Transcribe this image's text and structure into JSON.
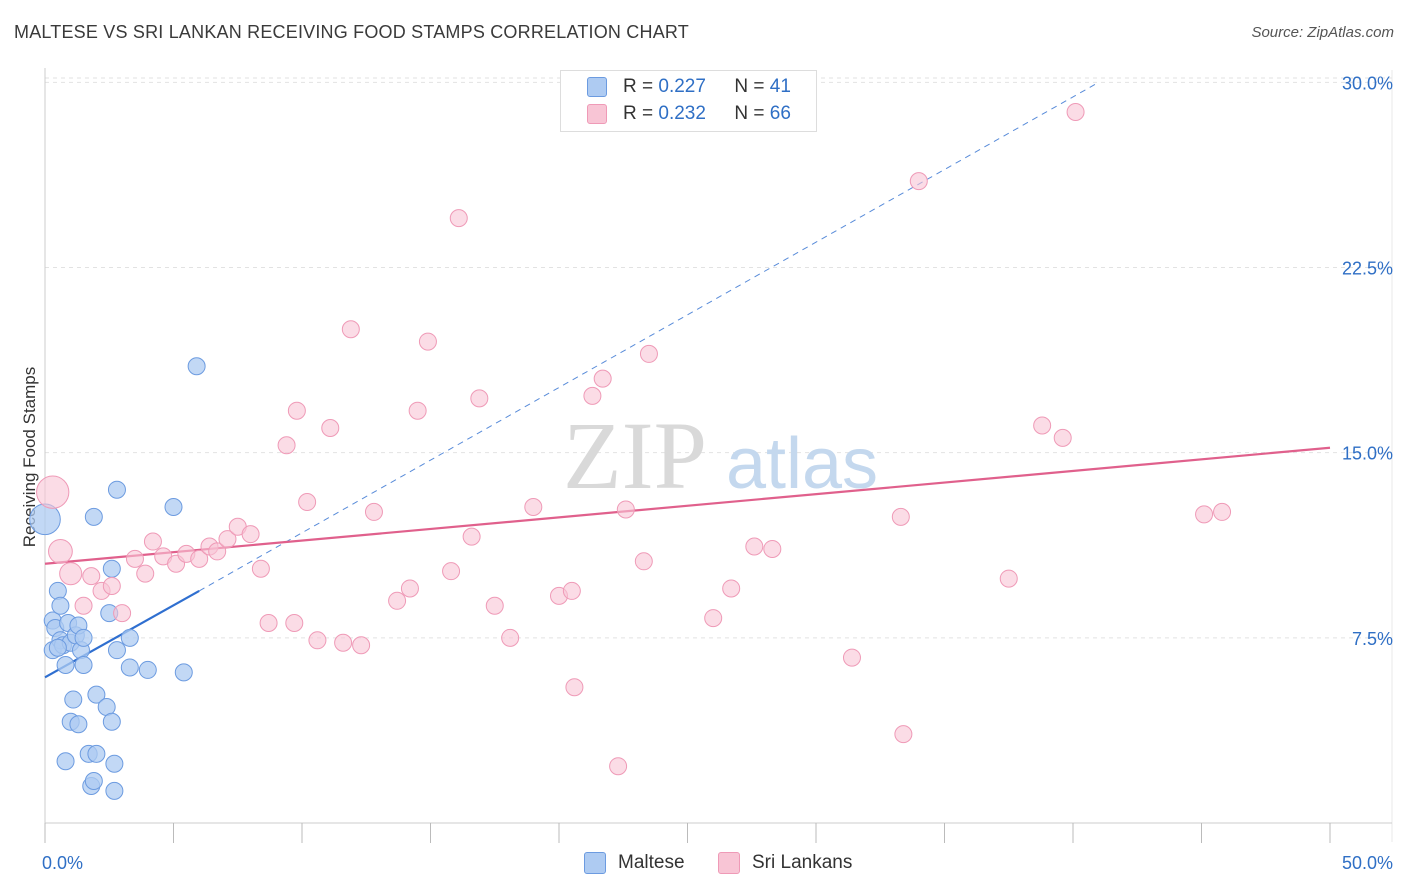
{
  "title": "MALTESE VS SRI LANKAN RECEIVING FOOD STAMPS CORRELATION CHART",
  "source": "Source: ZipAtlas.com",
  "colors": {
    "maltese_fill": "#aecbf2",
    "maltese_stroke": "#6c9be0",
    "maltese_line": "#2f6fd0",
    "srilankan_fill": "#f8c5d5",
    "srilankan_stroke": "#ef9ab7",
    "srilankan_line": "#e0608c",
    "value_text": "#2f6fc5"
  },
  "legend": {
    "r_label": "R =",
    "n_label": "N =",
    "maltese": {
      "r": "0.227",
      "n": "41"
    },
    "srilankan": {
      "r": "0.232",
      "n": "66"
    }
  },
  "chart_data": {
    "type": "scatter",
    "title": "MALTESE VS SRI LANKAN RECEIVING FOOD STAMPS CORRELATION CHART",
    "xlabel": "",
    "ylabel": "Receiving Food Stamps",
    "xlim": [
      0,
      50
    ],
    "ylim": [
      0,
      30.5
    ],
    "x_tick_labels": [
      "0.0%",
      "50.0%"
    ],
    "y_ticks": [
      7.5,
      15.0,
      22.5,
      30.0
    ],
    "y_tick_labels": [
      "7.5%",
      "15.0%",
      "22.5%",
      "30.0%"
    ],
    "grid": true,
    "watermark": {
      "zip": "ZIP",
      "atlas": "atlas"
    },
    "series": [
      {
        "name": "Maltese",
        "r": 0.227,
        "n": 41,
        "trend": {
          "x0": 0,
          "y0": 5.9,
          "x1": 6.0,
          "y1": 9.4,
          "dashed_to_x": 41.0,
          "dashed_to_y": 30.0
        },
        "points": [
          [
            0.0,
            12.3,
            1.8
          ],
          [
            0.3,
            8.2,
            1
          ],
          [
            0.3,
            7.0,
            1
          ],
          [
            0.4,
            7.9,
            1
          ],
          [
            0.5,
            9.4,
            1
          ],
          [
            0.6,
            7.4,
            1
          ],
          [
            0.6,
            8.8,
            1
          ],
          [
            0.7,
            7.2,
            1
          ],
          [
            0.8,
            6.4,
            1
          ],
          [
            0.9,
            8.1,
            1
          ],
          [
            1.0,
            7.3,
            1
          ],
          [
            1.1,
            5.0,
            1
          ],
          [
            1.2,
            7.6,
            1
          ],
          [
            1.3,
            8.0,
            1
          ],
          [
            1.4,
            7.0,
            1
          ],
          [
            1.5,
            7.5,
            1
          ],
          [
            1.0,
            4.1,
            1
          ],
          [
            1.3,
            4.0,
            1
          ],
          [
            0.8,
            2.5,
            1
          ],
          [
            1.7,
            2.8,
            1
          ],
          [
            2.0,
            2.8,
            1
          ],
          [
            1.8,
            1.5,
            1
          ],
          [
            1.9,
            1.7,
            1
          ],
          [
            2.7,
            1.3,
            1
          ],
          [
            2.7,
            2.4,
            1
          ],
          [
            2.0,
            5.2,
            1
          ],
          [
            2.4,
            4.7,
            1
          ],
          [
            2.6,
            4.1,
            1
          ],
          [
            2.5,
            8.5,
            1
          ],
          [
            2.6,
            10.3,
            1
          ],
          [
            1.9,
            12.4,
            1
          ],
          [
            2.8,
            13.5,
            1
          ],
          [
            2.8,
            7.0,
            1
          ],
          [
            3.3,
            7.5,
            1
          ],
          [
            3.3,
            6.3,
            1
          ],
          [
            4.0,
            6.2,
            1
          ],
          [
            5.0,
            12.8,
            1
          ],
          [
            5.4,
            6.1,
            1
          ],
          [
            5.9,
            18.5,
            1
          ],
          [
            0.5,
            7.1,
            1
          ],
          [
            1.5,
            6.4,
            1
          ]
        ]
      },
      {
        "name": "Sri Lankans",
        "r": 0.232,
        "n": 66,
        "trend": {
          "x0": 0,
          "y0": 10.5,
          "x1": 50,
          "y1": 15.2
        },
        "points": [
          [
            0.3,
            13.4,
            1.9
          ],
          [
            0.6,
            11.0,
            1.4
          ],
          [
            1.0,
            10.1,
            1.3
          ],
          [
            1.5,
            8.8,
            1
          ],
          [
            1.8,
            10.0,
            1
          ],
          [
            2.2,
            9.4,
            1
          ],
          [
            2.6,
            9.6,
            1
          ],
          [
            3.0,
            8.5,
            1
          ],
          [
            3.5,
            10.7,
            1
          ],
          [
            3.9,
            10.1,
            1
          ],
          [
            4.2,
            11.4,
            1
          ],
          [
            4.6,
            10.8,
            1
          ],
          [
            5.1,
            10.5,
            1
          ],
          [
            5.5,
            10.9,
            1
          ],
          [
            6.0,
            10.7,
            1
          ],
          [
            6.4,
            11.2,
            1
          ],
          [
            6.7,
            11.0,
            1
          ],
          [
            7.1,
            11.5,
            1
          ],
          [
            7.5,
            12.0,
            1
          ],
          [
            8.0,
            11.7,
            1
          ],
          [
            8.4,
            10.3,
            1
          ],
          [
            8.7,
            8.1,
            1
          ],
          [
            9.4,
            15.3,
            1
          ],
          [
            9.7,
            8.1,
            1
          ],
          [
            9.8,
            16.7,
            1
          ],
          [
            10.2,
            13.0,
            1
          ],
          [
            10.6,
            7.4,
            1
          ],
          [
            11.1,
            16.0,
            1
          ],
          [
            11.6,
            7.3,
            1
          ],
          [
            11.9,
            20.0,
            1
          ],
          [
            12.3,
            7.2,
            1
          ],
          [
            12.8,
            12.6,
            1
          ],
          [
            13.7,
            9.0,
            1
          ],
          [
            14.2,
            9.5,
            1
          ],
          [
            14.5,
            16.7,
            1
          ],
          [
            14.9,
            19.5,
            1
          ],
          [
            15.8,
            10.2,
            1
          ],
          [
            16.1,
            24.5,
            1
          ],
          [
            16.6,
            11.6,
            1
          ],
          [
            16.9,
            17.2,
            1
          ],
          [
            17.5,
            8.8,
            1
          ],
          [
            18.1,
            7.5,
            1
          ],
          [
            19.0,
            12.8,
            1
          ],
          [
            20.0,
            9.2,
            1
          ],
          [
            20.5,
            9.4,
            1
          ],
          [
            20.6,
            5.5,
            1
          ],
          [
            21.3,
            17.3,
            1
          ],
          [
            21.7,
            18.0,
            1
          ],
          [
            22.3,
            2.3,
            1
          ],
          [
            22.6,
            12.7,
            1
          ],
          [
            23.3,
            10.6,
            1
          ],
          [
            23.5,
            19.0,
            1
          ],
          [
            26.0,
            8.3,
            1
          ],
          [
            26.7,
            9.5,
            1
          ],
          [
            27.6,
            11.2,
            1
          ],
          [
            28.3,
            11.1,
            1
          ],
          [
            31.4,
            6.7,
            1
          ],
          [
            33.3,
            12.4,
            1
          ],
          [
            33.4,
            3.6,
            1
          ],
          [
            34.0,
            26.0,
            1
          ],
          [
            37.5,
            9.9,
            1
          ],
          [
            38.8,
            16.1,
            1
          ],
          [
            39.6,
            15.6,
            1
          ],
          [
            40.1,
            28.8,
            1
          ],
          [
            45.1,
            12.5,
            1
          ],
          [
            45.8,
            12.6,
            1
          ]
        ]
      }
    ]
  },
  "bottom_legend": {
    "maltese": "Maltese",
    "srilankan": "Sri Lankans"
  }
}
